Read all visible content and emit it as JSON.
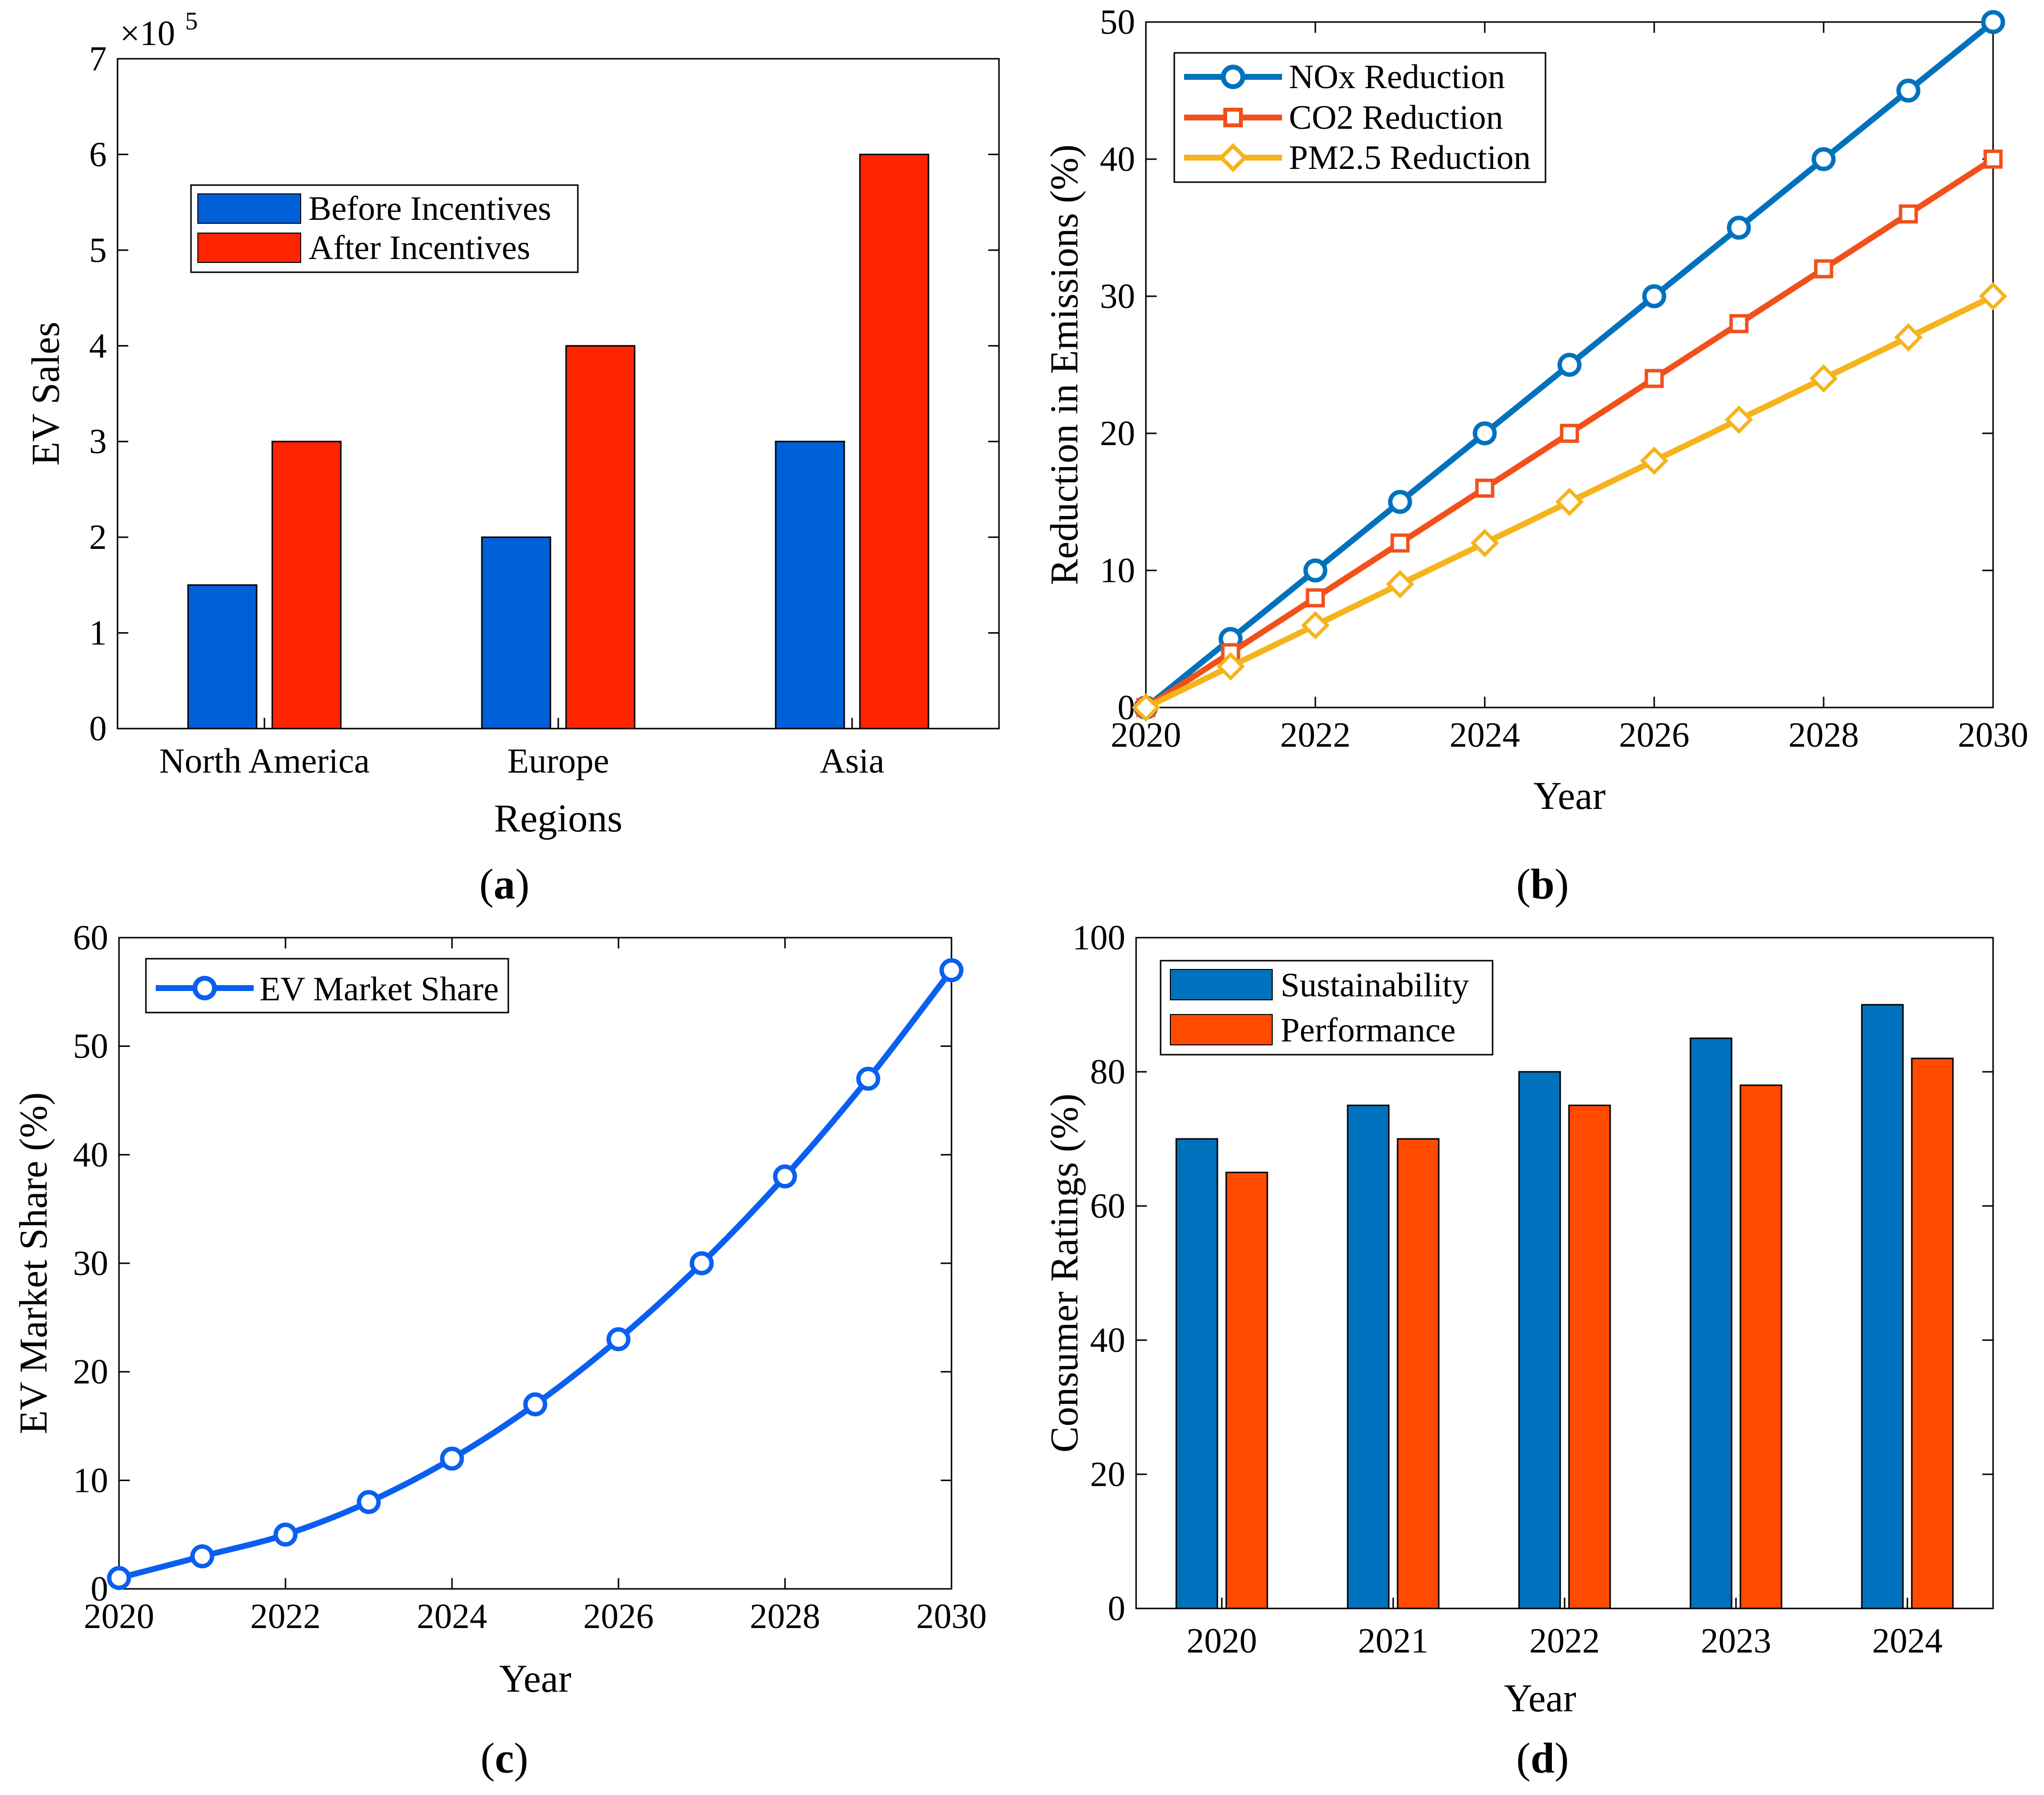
{
  "chart_data": [
    {
      "id": "a",
      "type": "bar",
      "caption_letter": "a",
      "categories": [
        "North America",
        "Europe",
        "Asia"
      ],
      "series": [
        {
          "name": "Before Incentives",
          "values": [
            150000,
            200000,
            300000
          ],
          "color": "#0060d8"
        },
        {
          "name": "After Incentives",
          "values": [
            300000,
            400000,
            600000
          ],
          "color": "#ff2400"
        }
      ],
      "title": "",
      "xlabel": "Regions",
      "ylabel": "EV Sales",
      "ylim": [
        0,
        700000
      ],
      "y_scale_label": "×10",
      "y_scale_exponent": "5",
      "yticks": [
        "0",
        "1",
        "2",
        "3",
        "4",
        "5",
        "6",
        "7"
      ],
      "legend_position": "upper-left",
      "grid": false
    },
    {
      "id": "b",
      "type": "line",
      "caption_letter": "b",
      "x": [
        2020,
        2021,
        2022,
        2023,
        2024,
        2025,
        2026,
        2027,
        2028,
        2029,
        2030
      ],
      "series": [
        {
          "name": "NOx Reduction",
          "values": [
            0,
            5,
            10,
            15,
            20,
            25,
            30,
            35,
            40,
            45,
            50
          ],
          "color": "#0072bd",
          "marker": "circle"
        },
        {
          "name": "CO2 Reduction",
          "values": [
            0,
            4,
            8,
            12,
            16,
            20,
            24,
            28,
            32,
            36,
            40
          ],
          "color": "#f2501a",
          "marker": "square"
        },
        {
          "name": "PM2.5 Reduction",
          "values": [
            0,
            3,
            6,
            9,
            12,
            15,
            18,
            21,
            24,
            27,
            30
          ],
          "color": "#f5b31c",
          "marker": "diamond"
        }
      ],
      "title": "",
      "xlabel": "Year",
      "ylabel": "Reduction in Emissions (%)",
      "xlim": [
        2020,
        2030
      ],
      "ylim": [
        0,
        50
      ],
      "xticks": [
        "2020",
        "2022",
        "2024",
        "2026",
        "2028",
        "2030"
      ],
      "yticks": [
        "0",
        "10",
        "20",
        "30",
        "40",
        "50"
      ],
      "legend_position": "top-left",
      "grid": false
    },
    {
      "id": "c",
      "type": "line",
      "caption_letter": "c",
      "x": [
        2020,
        2021,
        2022,
        2023,
        2024,
        2025,
        2026,
        2027,
        2028,
        2029,
        2030
      ],
      "series": [
        {
          "name": "EV Market Share",
          "values": [
            1,
            3,
            5,
            8,
            12,
            17,
            23,
            30,
            38,
            47,
            57
          ],
          "color": "#0a5ff0",
          "marker": "circle"
        }
      ],
      "title": "",
      "xlabel": "Year",
      "ylabel": "EV Market Share (%)",
      "xlim": [
        2020,
        2030
      ],
      "ylim": [
        0,
        60
      ],
      "xticks": [
        "2020",
        "2022",
        "2024",
        "2026",
        "2028",
        "2030"
      ],
      "yticks": [
        "0",
        "10",
        "20",
        "30",
        "40",
        "50",
        "60"
      ],
      "legend_position": "top-left",
      "grid": false
    },
    {
      "id": "d",
      "type": "bar",
      "caption_letter": "d",
      "categories": [
        "2020",
        "2021",
        "2022",
        "2023",
        "2024"
      ],
      "series": [
        {
          "name": "Sustainability",
          "values": [
            70,
            75,
            80,
            85,
            90
          ],
          "color": "#0072bd"
        },
        {
          "name": "Performance",
          "values": [
            65,
            70,
            75,
            78,
            82
          ],
          "color": "#ff4a00"
        }
      ],
      "title": "",
      "xlabel": "Year",
      "ylabel": "Consumer Ratings (%)",
      "ylim": [
        0,
        100
      ],
      "yticks": [
        "0",
        "20",
        "40",
        "60",
        "80",
        "100"
      ],
      "legend_position": "top-left",
      "grid": false
    }
  ]
}
